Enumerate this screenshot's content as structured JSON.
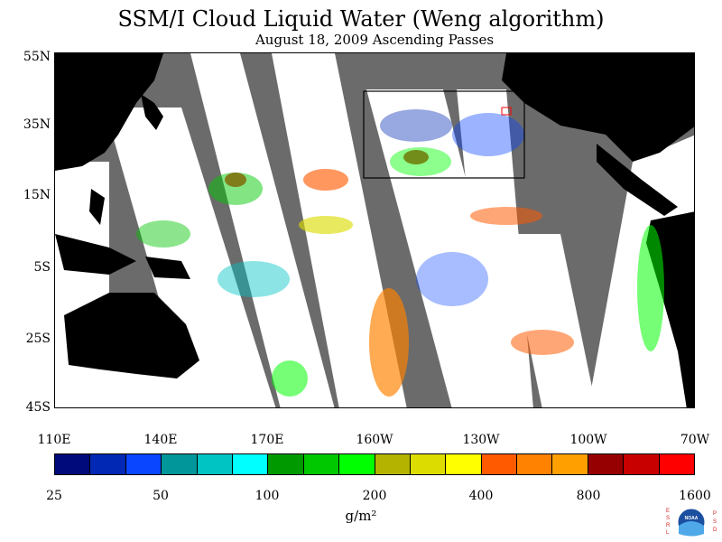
{
  "title": "SSM/I Cloud Liquid Water (Weng algorithm)",
  "subtitle": "August 18, 2009  Ascending Passes",
  "lat_labels": [
    "55N",
    "35N",
    "15N",
    "5S",
    "25S",
    "45S"
  ],
  "lon_labels": [
    "110E",
    "140E",
    "170E",
    "160W",
    "130W",
    "100W",
    "70W"
  ],
  "colorbar": {
    "colors": [
      "#000a7a",
      "#0028b4",
      "#0a46ff",
      "#00969a",
      "#00c3c3",
      "#00ffff",
      "#009a00",
      "#00c800",
      "#00ff00",
      "#b4b400",
      "#dcdc00",
      "#ffff00",
      "#ff5a00",
      "#ff8200",
      "#ffa000",
      "#960000",
      "#c80000",
      "#ff0000"
    ],
    "tick_labels": [
      "25",
      "50",
      "100",
      "200",
      "400",
      "800",
      "1600"
    ],
    "unit": "g/m²"
  },
  "colors": {
    "no_data_swath_gap": "#6b6b6b",
    "land": "#000000",
    "ocean_clear": "#ffffff"
  },
  "logo": {
    "left_text": "ESRL",
    "right_text": "PSD",
    "center_text": "NOAA"
  }
}
